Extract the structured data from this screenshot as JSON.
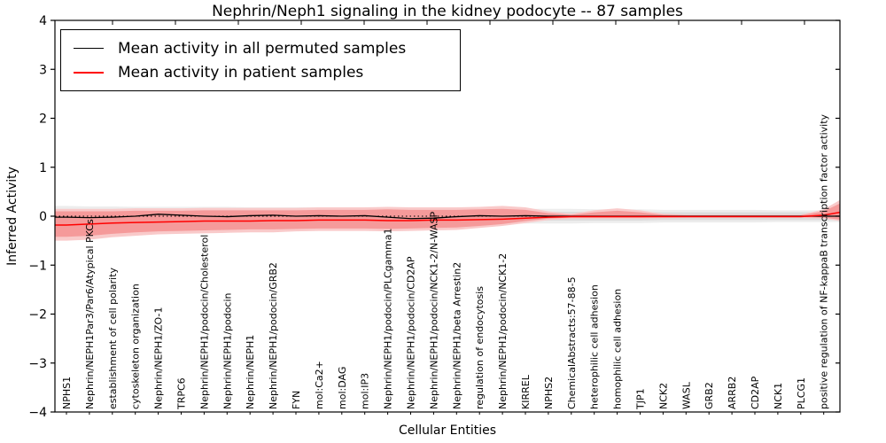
{
  "title": "Nephrin/Neph1 signaling in the kidney podocyte -- 87 samples",
  "axes": {
    "x_label": "Cellular Entities",
    "y_label": "Inferred Activity",
    "y_ticks": [
      "4",
      "3",
      "2",
      "1",
      "0",
      "−1",
      "−2",
      "−3",
      "−4"
    ]
  },
  "legend": {
    "items": [
      {
        "label": "Mean activity in all permuted samples",
        "color": "#000000"
      },
      {
        "label": "Mean activity in patient samples",
        "color": "#ff0000"
      }
    ]
  },
  "colors": {
    "permuted_line": "#000000",
    "patient_line": "#ff0000",
    "zero_line": "#000000",
    "patient_band_inner": "#f59a9a",
    "patient_band_outer": "#f9caca",
    "permuted_band_inner": "#dcdcdc",
    "permuted_band_outer": "#ededed",
    "axis": "#000000"
  },
  "chart_data": {
    "type": "line",
    "title": "Nephrin/Neph1 signaling in the kidney podocyte -- 87 samples",
    "xlabel": "Cellular Entities",
    "ylabel": "Inferred Activity",
    "ylim": [
      -4,
      4
    ],
    "grid": false,
    "legend_position": "upper left",
    "zero_reference_line": 0,
    "values_include_plot_edges": true,
    "categories": [
      "NPHS1",
      "Nephrin/NEPH1Par3/Par6/Atypical PKCs",
      "establishment of cell polarity",
      "cytoskeleton organization",
      "Nephrin/NEPH1/ZO-1",
      "TRPC6",
      "Nephrin/NEPH1/podocin/Cholesterol",
      "Nephrin/NEPH1/podocin",
      "Nephrin/NEPH1",
      "Nephrin/NEPH1/podocin/GRB2",
      "FYN",
      "mol:Ca2+",
      "mol:DAG",
      "mol:IP3",
      "Nephrin/NEPH1/podocin/PLCgamma1",
      "Nephrin/NEPH1/podocin/CD2AP",
      "Nephrin/NEPH1/podocin/NCK1-2/N-WASP",
      "Nephrin/NEPH1/beta Arrestin2",
      "regulation of endocytosis",
      "Nephrin/NEPH1/podocin/NCK1-2",
      "KIRREL",
      "NPHS2",
      "ChemicalAbstracts:57-88-5",
      "heterophilic cell adhesion",
      "homophilic cell adhesion",
      "TJP1",
      "NCK2",
      "WASL",
      "GRB2",
      "ARRB2",
      "CD2AP",
      "NCK1",
      "PLCG1",
      "positive regulation of NF-kappaB transcription factor activity"
    ],
    "series": [
      {
        "name": "Mean activity in all permuted samples",
        "color": "#000000",
        "width": 1.3,
        "values": [
          -0.02,
          -0.02,
          -0.03,
          -0.02,
          0.0,
          0.04,
          0.02,
          0.0,
          -0.01,
          0.01,
          0.02,
          0.0,
          0.01,
          0.0,
          0.01,
          -0.02,
          -0.05,
          -0.04,
          -0.01,
          0.01,
          0.0,
          0.01,
          0.0,
          0.0,
          0.0,
          0.0,
          0.0,
          0.0,
          0.0,
          0.0,
          0.0,
          0.0,
          0.0,
          0.0,
          0.0,
          0.0
        ]
      },
      {
        "name": "Mean activity in patient samples",
        "color": "#ff0000",
        "width": 1.5,
        "values": [
          -0.18,
          -0.18,
          -0.16,
          -0.14,
          -0.13,
          -0.12,
          -0.11,
          -0.1,
          -0.1,
          -0.1,
          -0.09,
          -0.09,
          -0.08,
          -0.08,
          -0.08,
          -0.09,
          -0.09,
          -0.08,
          -0.08,
          -0.07,
          -0.06,
          -0.04,
          -0.02,
          -0.01,
          -0.01,
          -0.01,
          -0.01,
          -0.01,
          -0.01,
          -0.01,
          -0.01,
          -0.01,
          -0.01,
          -0.01,
          0.02,
          0.08
        ]
      }
    ],
    "bands": [
      {
        "name": "permuted-range-outer",
        "color": "#ededed",
        "upper": [
          0.21,
          0.21,
          0.2,
          0.2,
          0.19,
          0.19,
          0.19,
          0.19,
          0.19,
          0.18,
          0.18,
          0.18,
          0.18,
          0.17,
          0.17,
          0.17,
          0.17,
          0.16,
          0.16,
          0.16,
          0.16,
          0.15,
          0.15,
          0.15,
          0.14,
          0.14,
          0.14,
          0.13,
          0.13,
          0.13,
          0.13,
          0.13,
          0.12,
          0.12,
          0.12,
          0.12
        ],
        "lower": [
          -0.21,
          -0.21,
          -0.2,
          -0.2,
          -0.19,
          -0.19,
          -0.19,
          -0.19,
          -0.19,
          -0.18,
          -0.18,
          -0.18,
          -0.18,
          -0.17,
          -0.17,
          -0.17,
          -0.17,
          -0.16,
          -0.16,
          -0.16,
          -0.16,
          -0.15,
          -0.15,
          -0.15,
          -0.14,
          -0.14,
          -0.14,
          -0.13,
          -0.13,
          -0.13,
          -0.13,
          -0.13,
          -0.12,
          -0.12,
          -0.12,
          -0.12
        ]
      },
      {
        "name": "permuted-range-inner",
        "color": "#dcdcdc",
        "upper": [
          0.13,
          0.13,
          0.13,
          0.12,
          0.12,
          0.12,
          0.12,
          0.12,
          0.12,
          0.12,
          0.12,
          0.11,
          0.11,
          0.11,
          0.11,
          0.11,
          0.11,
          0.11,
          0.1,
          0.1,
          0.1,
          0.1,
          0.09,
          0.09,
          0.09,
          0.09,
          0.09,
          0.08,
          0.08,
          0.08,
          0.08,
          0.08,
          0.08,
          0.08,
          0.08,
          0.08
        ],
        "lower": [
          -0.13,
          -0.13,
          -0.13,
          -0.12,
          -0.12,
          -0.12,
          -0.12,
          -0.12,
          -0.12,
          -0.12,
          -0.12,
          -0.11,
          -0.11,
          -0.11,
          -0.11,
          -0.11,
          -0.11,
          -0.11,
          -0.1,
          -0.1,
          -0.1,
          -0.1,
          -0.09,
          -0.09,
          -0.09,
          -0.09,
          -0.09,
          -0.08,
          -0.08,
          -0.08,
          -0.08,
          -0.08,
          -0.08,
          -0.08,
          -0.08,
          -0.08
        ]
      },
      {
        "name": "patient-range-outer",
        "color": "#f9caca",
        "upper": [
          0.15,
          0.15,
          0.15,
          0.15,
          0.16,
          0.16,
          0.16,
          0.17,
          0.17,
          0.17,
          0.17,
          0.17,
          0.18,
          0.18,
          0.18,
          0.19,
          0.18,
          0.18,
          0.18,
          0.19,
          0.21,
          0.18,
          0.1,
          0.05,
          0.12,
          0.16,
          0.12,
          0.05,
          0.03,
          0.03,
          0.03,
          0.03,
          0.03,
          0.03,
          0.14,
          0.33
        ],
        "lower": [
          -0.5,
          -0.5,
          -0.48,
          -0.43,
          -0.4,
          -0.37,
          -0.36,
          -0.35,
          -0.34,
          -0.33,
          -0.33,
          -0.31,
          -0.3,
          -0.3,
          -0.3,
          -0.31,
          -0.3,
          -0.29,
          -0.28,
          -0.24,
          -0.2,
          -0.14,
          -0.08,
          -0.05,
          -0.05,
          -0.05,
          -0.05,
          -0.04,
          -0.03,
          -0.03,
          -0.03,
          -0.03,
          -0.03,
          -0.03,
          -0.05,
          -0.1
        ]
      },
      {
        "name": "patient-range-inner",
        "color": "#f59a9a",
        "upper": [
          0.1,
          0.1,
          0.1,
          0.1,
          0.11,
          0.11,
          0.11,
          0.12,
          0.12,
          0.12,
          0.12,
          0.12,
          0.13,
          0.13,
          0.13,
          0.14,
          0.13,
          0.13,
          0.13,
          0.14,
          0.15,
          0.13,
          0.06,
          0.03,
          0.08,
          0.11,
          0.08,
          0.03,
          0.02,
          0.02,
          0.02,
          0.02,
          0.02,
          0.02,
          0.1,
          0.26
        ],
        "lower": [
          -0.42,
          -0.42,
          -0.4,
          -0.36,
          -0.33,
          -0.31,
          -0.3,
          -0.29,
          -0.28,
          -0.27,
          -0.27,
          -0.26,
          -0.25,
          -0.25,
          -0.25,
          -0.26,
          -0.25,
          -0.24,
          -0.23,
          -0.2,
          -0.16,
          -0.1,
          -0.05,
          -0.03,
          -0.03,
          -0.03,
          -0.03,
          -0.02,
          -0.02,
          -0.02,
          -0.02,
          -0.02,
          -0.02,
          -0.02,
          -0.03,
          -0.07
        ]
      }
    ]
  }
}
